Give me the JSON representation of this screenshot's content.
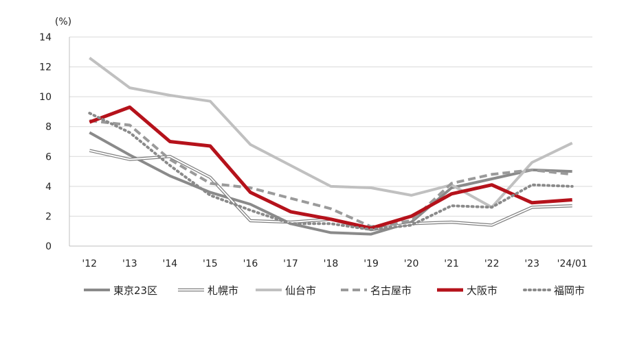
{
  "chart_data": {
    "type": "line",
    "unit_label": "(%)",
    "x": [
      "'12",
      "'13",
      "'14",
      "'15",
      "'16",
      "'17",
      "'18",
      "'19",
      "'20",
      "'21",
      "'22",
      "'23",
      "'24/01"
    ],
    "ylim": [
      0,
      14
    ],
    "yticks": [
      0,
      2,
      4,
      6,
      8,
      10,
      12,
      14
    ],
    "grid": "horizontal",
    "legend_position": "bottom",
    "series": [
      {
        "name": "東京23区",
        "color": "#8a8a8a",
        "style": "solid",
        "values": [
          7.6,
          6.1,
          4.7,
          3.6,
          2.8,
          1.5,
          0.9,
          0.8,
          1.6,
          3.9,
          4.5,
          5.1,
          5.0
        ]
      },
      {
        "name": "札幌市",
        "color": "#7f7f7f",
        "style": "double",
        "values": [
          6.4,
          5.8,
          6.0,
          4.6,
          1.7,
          1.6,
          1.8,
          1.1,
          1.5,
          1.6,
          1.4,
          2.6,
          2.7
        ]
      },
      {
        "name": "仙台市",
        "color": "#c0c0c0",
        "style": "solid",
        "values": [
          12.6,
          10.6,
          10.1,
          9.7,
          6.8,
          5.4,
          4.0,
          3.9,
          3.4,
          4.1,
          2.6,
          5.6,
          6.9
        ]
      },
      {
        "name": "名古屋市",
        "color": "#9a9a9a",
        "style": "dashed",
        "values": [
          8.4,
          8.1,
          5.8,
          4.2,
          3.9,
          3.2,
          2.5,
          1.3,
          1.7,
          4.2,
          4.8,
          5.1,
          4.8
        ]
      },
      {
        "name": "大阪市",
        "color": "#b5121b",
        "style": "solid",
        "values": [
          8.3,
          9.3,
          7.0,
          6.7,
          3.6,
          2.3,
          1.8,
          1.2,
          2.0,
          3.5,
          4.1,
          2.9,
          3.1
        ]
      },
      {
        "name": "福岡市",
        "color": "#8a8a8a",
        "style": "dotted",
        "values": [
          8.9,
          7.6,
          5.4,
          3.4,
          2.4,
          1.5,
          1.5,
          1.1,
          1.4,
          2.7,
          2.6,
          4.1,
          4.0
        ]
      }
    ]
  }
}
